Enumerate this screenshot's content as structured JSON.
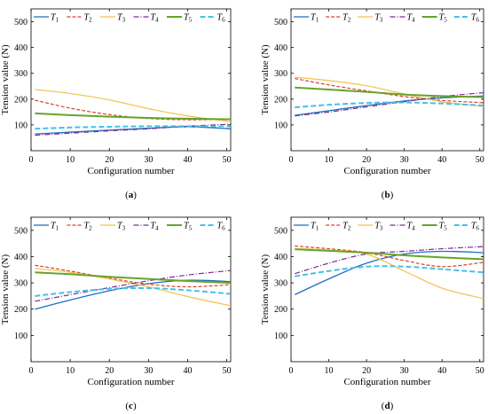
{
  "series_styles": [
    {
      "color": "#1f6fbf",
      "dash": "",
      "width": 1.3
    },
    {
      "color": "#d9452b",
      "dash": "4,2",
      "width": 1.2
    },
    {
      "color": "#f2c14e",
      "dash": "",
      "width": 1.2
    },
    {
      "color": "#7b2d8e",
      "dash": "6,2,1,2",
      "width": 1.2
    },
    {
      "color": "#67a32b",
      "dash": "",
      "width": 2.0
    },
    {
      "color": "#45c1e8",
      "dash": "6,3",
      "width": 2.0
    }
  ],
  "legend": [
    {
      "base": "T",
      "sub": "1"
    },
    {
      "base": "T",
      "sub": "2"
    },
    {
      "base": "T",
      "sub": "3"
    },
    {
      "base": "T",
      "sub": "4"
    },
    {
      "base": "T",
      "sub": "5"
    },
    {
      "base": "T",
      "sub": "6"
    }
  ],
  "chart_data": [
    {
      "type": "line",
      "caption_letter": "a",
      "xlabel": "Configuration number",
      "ylabel": "Tension value (N)",
      "xlim": [
        0,
        51
      ],
      "ylim": [
        0,
        550
      ],
      "xticks": [
        0,
        10,
        20,
        30,
        40,
        50
      ],
      "yticks": [
        100,
        200,
        300,
        400,
        500
      ],
      "x": [
        1,
        10,
        20,
        30,
        40,
        51
      ],
      "series": [
        {
          "name": "T1",
          "values": [
            65,
            72,
            80,
            87,
            93,
            85
          ]
        },
        {
          "name": "T2",
          "values": [
            196,
            165,
            140,
            125,
            120,
            122
          ]
        },
        {
          "name": "T3",
          "values": [
            237,
            222,
            197,
            163,
            135,
            113
          ]
        },
        {
          "name": "T4",
          "values": [
            60,
            68,
            77,
            85,
            95,
            103
          ]
        },
        {
          "name": "T5",
          "values": [
            145,
            138,
            132,
            127,
            124,
            122
          ]
        },
        {
          "name": "T6",
          "values": [
            85,
            90,
            93,
            95,
            95,
            95
          ]
        }
      ]
    },
    {
      "type": "line",
      "caption_letter": "b",
      "xlabel": "Configuration number",
      "ylabel": "Tension value (N)",
      "xlim": [
        0,
        51
      ],
      "ylim": [
        0,
        550
      ],
      "xticks": [
        0,
        10,
        20,
        30,
        40,
        50
      ],
      "yticks": [
        100,
        200,
        300,
        400,
        500
      ],
      "x": [
        1,
        10,
        20,
        30,
        40,
        51
      ],
      "series": [
        {
          "name": "T1",
          "values": [
            137,
            155,
            175,
            193,
            205,
            212
          ]
        },
        {
          "name": "T2",
          "values": [
            280,
            255,
            232,
            210,
            195,
            186
          ]
        },
        {
          "name": "T3",
          "values": [
            285,
            272,
            252,
            220,
            190,
            172
          ]
        },
        {
          "name": "T4",
          "values": [
            135,
            150,
            170,
            190,
            210,
            225
          ]
        },
        {
          "name": "T5",
          "values": [
            245,
            237,
            228,
            218,
            212,
            208
          ]
        },
        {
          "name": "T6",
          "values": [
            168,
            178,
            185,
            187,
            183,
            175
          ]
        }
      ]
    },
    {
      "type": "line",
      "caption_letter": "c",
      "xlabel": "Configuration number",
      "ylabel": "Tension value (N)",
      "xlim": [
        0,
        51
      ],
      "ylim": [
        0,
        550
      ],
      "xticks": [
        0,
        10,
        20,
        30,
        40,
        50
      ],
      "yticks": [
        100,
        200,
        300,
        400,
        500
      ],
      "x": [
        1,
        10,
        20,
        30,
        40,
        51
      ],
      "series": [
        {
          "name": "T1",
          "values": [
            200,
            235,
            270,
            297,
            310,
            305
          ]
        },
        {
          "name": "T2",
          "values": [
            367,
            345,
            318,
            295,
            285,
            293
          ]
        },
        {
          "name": "T3",
          "values": [
            355,
            340,
            315,
            285,
            248,
            213
          ]
        },
        {
          "name": "T4",
          "values": [
            230,
            255,
            282,
            308,
            330,
            347
          ]
        },
        {
          "name": "T5",
          "values": [
            340,
            333,
            323,
            315,
            307,
            300
          ]
        },
        {
          "name": "T6",
          "values": [
            250,
            265,
            277,
            280,
            272,
            258
          ]
        }
      ]
    },
    {
      "type": "line",
      "caption_letter": "d",
      "xlabel": "Configuration number",
      "ylabel": "Tension value (N)",
      "xlim": [
        0,
        51
      ],
      "ylim": [
        0,
        550
      ],
      "xticks": [
        0,
        10,
        20,
        30,
        40,
        50
      ],
      "yticks": [
        100,
        200,
        300,
        400,
        500
      ],
      "x": [
        1,
        10,
        20,
        30,
        40,
        51
      ],
      "series": [
        {
          "name": "T1",
          "values": [
            255,
            315,
            375,
            410,
            420,
            415
          ]
        },
        {
          "name": "T2",
          "values": [
            440,
            430,
            415,
            385,
            362,
            378
          ]
        },
        {
          "name": "T3",
          "values": [
            430,
            425,
            410,
            345,
            280,
            240
          ]
        },
        {
          "name": "T4",
          "values": [
            335,
            375,
            410,
            420,
            430,
            438
          ]
        },
        {
          "name": "T5",
          "values": [
            428,
            422,
            415,
            405,
            397,
            390
          ]
        },
        {
          "name": "T6",
          "values": [
            325,
            345,
            362,
            362,
            352,
            340
          ]
        }
      ]
    }
  ]
}
